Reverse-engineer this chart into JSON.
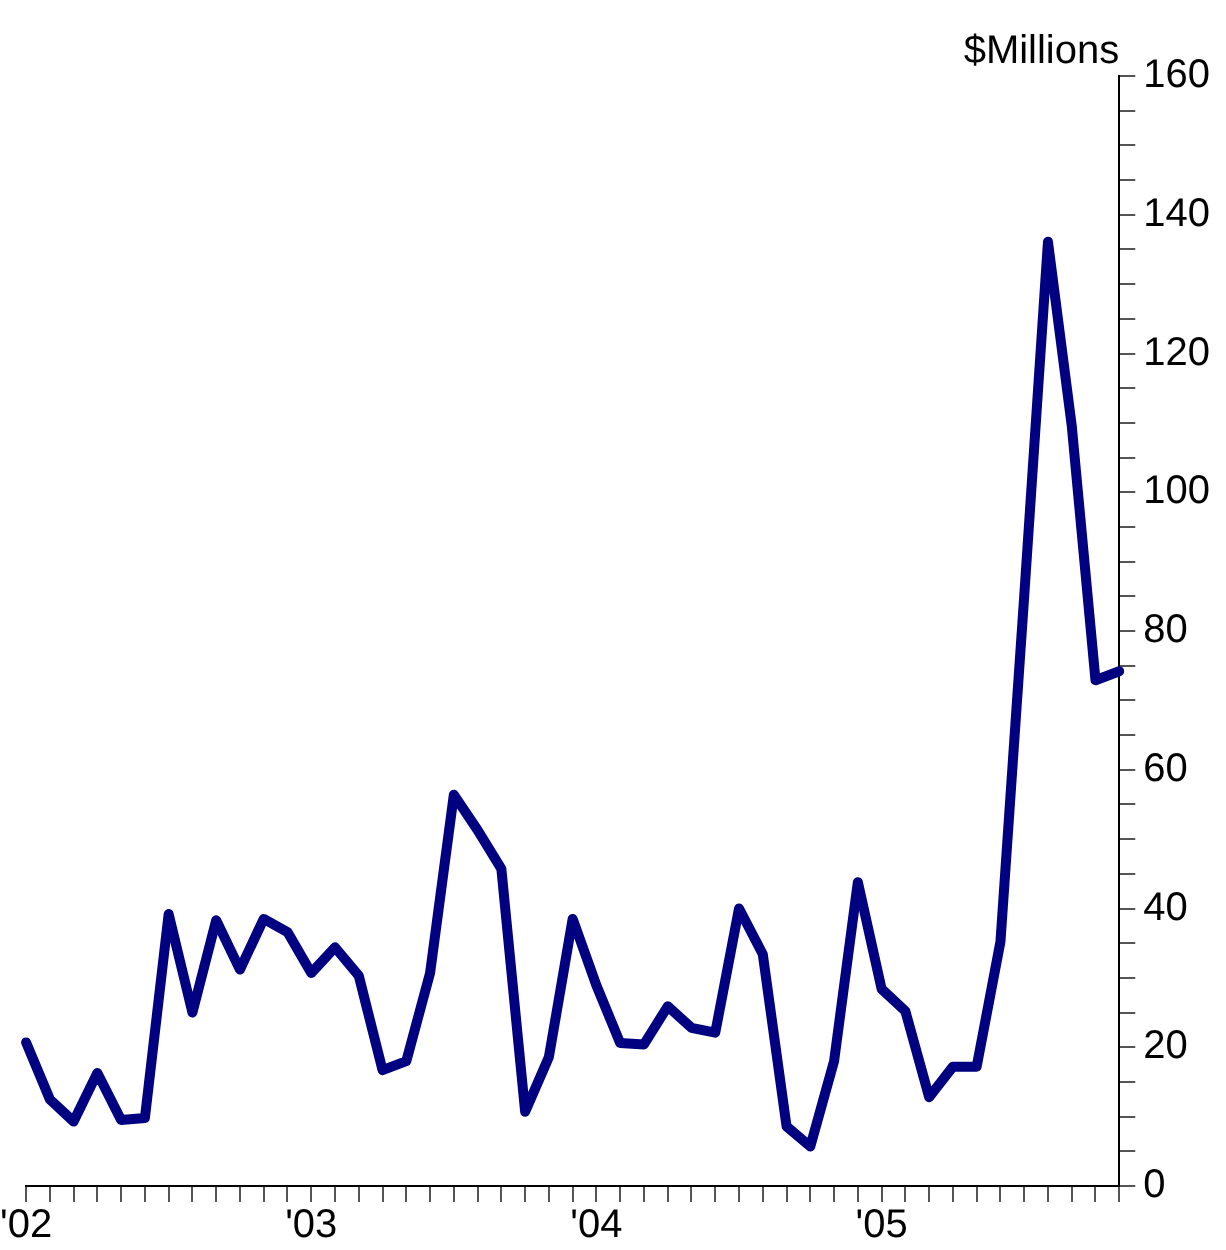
{
  "chart_data": {
    "type": "line",
    "ylabel": "$Millions",
    "categories": [
      "'02",
      null,
      null,
      null,
      null,
      null,
      null,
      null,
      null,
      null,
      null,
      null,
      "'03",
      null,
      null,
      null,
      null,
      null,
      null,
      null,
      null,
      null,
      null,
      null,
      "'04",
      null,
      null,
      null,
      null,
      null,
      null,
      null,
      null,
      null,
      null,
      null,
      "'05",
      null,
      null,
      null,
      null,
      null,
      null,
      null,
      null,
      null,
      null
    ],
    "series": [
      {
        "color": "#000080",
        "values": [
          20.7,
          12.5,
          9.3,
          16.3,
          9.5,
          9.8,
          39.2,
          25.0,
          38.3,
          31.2,
          38.5,
          36.6,
          30.7,
          34.4,
          30.3,
          16.7,
          18.0,
          30.7,
          56.4,
          51.3,
          45.7,
          10.7,
          18.6,
          38.5,
          28.9,
          20.6,
          20.4,
          25.9,
          22.8,
          22.1,
          40.0,
          33.4,
          8.6,
          5.7,
          18.0,
          43.8,
          28.4,
          25.2,
          12.8,
          17.2,
          17.2,
          35.2,
          85,
          136.1,
          109.6,
          72.9,
          74.2
        ]
      }
    ],
    "ylim": [
      0,
      160
    ],
    "yticks": [
      0,
      {
        "value": 5,
        "label": null
      },
      {
        "value": 10,
        "label": null
      },
      {
        "value": 15,
        "label": null
      },
      20,
      {
        "value": 25,
        "label": null
      },
      {
        "value": 30,
        "label": null
      },
      {
        "value": 35,
        "label": null
      },
      40,
      {
        "value": 45,
        "label": null
      },
      {
        "value": 50,
        "label": null
      },
      {
        "value": 55,
        "label": null
      },
      60,
      {
        "value": 65,
        "label": null
      },
      {
        "value": 70,
        "label": null
      },
      {
        "value": 75,
        "label": null
      },
      80,
      {
        "value": 85,
        "label": null
      },
      {
        "value": 90,
        "label": null
      },
      {
        "value": 95,
        "label": null
      },
      100,
      {
        "value": 105,
        "label": null
      },
      {
        "value": 110,
        "label": null
      },
      {
        "value": 115,
        "label": null
      },
      120,
      {
        "value": 125,
        "label": null
      },
      {
        "value": 130,
        "label": null
      },
      {
        "value": 135,
        "label": null
      },
      140,
      {
        "value": 145,
        "label": null
      },
      {
        "value": 150,
        "label": null
      },
      {
        "value": 155,
        "label": null
      },
      160
    ],
    "grid": false,
    "legend": false,
    "marker": "none",
    "line_style": "solid"
  }
}
